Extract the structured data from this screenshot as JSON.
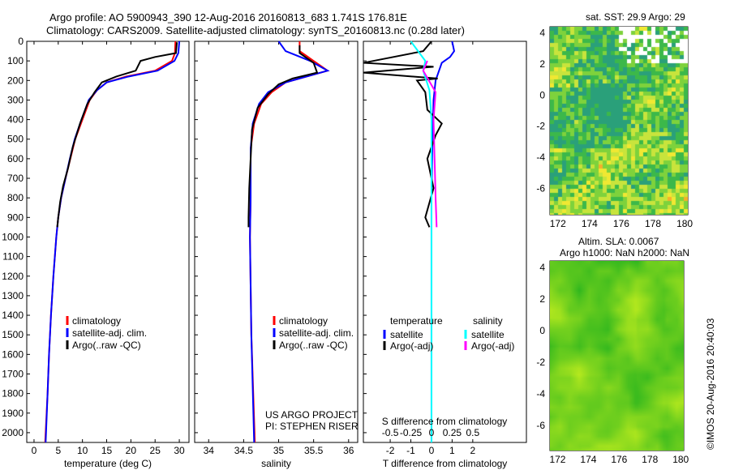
{
  "title_line1": "Argo profile: AO 5900943_390 12-Aug-2016 20160813_683 1.741S 176.81E",
  "title_line2": "Climatology: CARS2009. Satellite-adjusted climatology: synTS_20160813.nc (0.28d later)",
  "colors": {
    "climatology": "#ff0000",
    "satellite": "#0000ff",
    "argo": "#000000",
    "sal_sat": "#00ffff",
    "sal_argo": "#ff00ff"
  },
  "chart_data": [
    {
      "type": "line",
      "name": "temperature",
      "xlabel": "temperature (deg C)",
      "xlim": [
        -1.5,
        32
      ],
      "ylim": [
        0,
        2050
      ],
      "xticks": [
        0,
        5,
        10,
        15,
        20,
        25,
        30
      ],
      "yticks": [
        0,
        100,
        200,
        300,
        400,
        500,
        600,
        700,
        800,
        900,
        1000,
        1100,
        1200,
        1300,
        1400,
        1500,
        1600,
        1700,
        1800,
        1900,
        2000
      ],
      "legend": [
        "climatology",
        "satellite-adj. clim.",
        "Argo(..raw -QC)"
      ],
      "series": [
        {
          "name": "climatology",
          "color": "#ff0000",
          "points": [
            [
              29.2,
              0
            ],
            [
              29.1,
              60
            ],
            [
              28.5,
              100
            ],
            [
              25,
              150
            ],
            [
              19,
              180
            ],
            [
              15,
              210
            ],
            [
              13,
              250
            ],
            [
              11.5,
              300
            ],
            [
              10,
              400
            ],
            [
              8.5,
              500
            ],
            [
              7.5,
              600
            ],
            [
              6.5,
              700
            ],
            [
              5.6,
              800
            ],
            [
              5,
              900
            ],
            [
              4.6,
              1000
            ],
            [
              4,
              1200
            ],
            [
              3.5,
              1400
            ],
            [
              3.1,
              1600
            ],
            [
              2.8,
              1800
            ],
            [
              2.3,
              2050
            ]
          ]
        },
        {
          "name": "satellite-adj. clim.",
          "color": "#0000ff",
          "points": [
            [
              30,
              0
            ],
            [
              29.8,
              60
            ],
            [
              29,
              100
            ],
            [
              25.5,
              150
            ],
            [
              19.5,
              180
            ],
            [
              15,
              210
            ],
            [
              13,
              250
            ],
            [
              11.3,
              300
            ],
            [
              9.8,
              400
            ],
            [
              8.4,
              500
            ],
            [
              7.4,
              600
            ],
            [
              6.5,
              700
            ],
            [
              5.6,
              800
            ],
            [
              5,
              900
            ],
            [
              4.6,
              1000
            ],
            [
              4,
              1200
            ],
            [
              3.5,
              1400
            ],
            [
              3.1,
              1600
            ],
            [
              2.8,
              1800
            ],
            [
              2.4,
              2050
            ]
          ]
        },
        {
          "name": "Argo(..raw -QC)",
          "color": "#000000",
          "points": [
            [
              29.5,
              5
            ],
            [
              29.3,
              60
            ],
            [
              25,
              80
            ],
            [
              22,
              100
            ],
            [
              21,
              150
            ],
            [
              17,
              180
            ],
            [
              14,
              210
            ],
            [
              12.5,
              260
            ],
            [
              11,
              320
            ],
            [
              9.5,
              420
            ],
            [
              8,
              540
            ],
            [
              7,
              650
            ],
            [
              6,
              740
            ],
            [
              5.4,
              820
            ],
            [
              5,
              900
            ],
            [
              4.8,
              950
            ]
          ]
        }
      ]
    },
    {
      "type": "line",
      "name": "salinity",
      "xlabel": "salinity",
      "xlim": [
        33.8,
        36.13
      ],
      "ylim": [
        0,
        2050
      ],
      "xticks": [
        34,
        34.5,
        35,
        35.5,
        36
      ],
      "legend": [
        "climatology",
        "satellite-adj. clim.",
        "Argo(..raw -QC)"
      ],
      "annotation": [
        "US ARGO PROJECT",
        "PI: STEPHEN RISER"
      ],
      "series": [
        {
          "name": "climatology",
          "color": "#ff0000",
          "points": [
            [
              35.3,
              0
            ],
            [
              35.3,
              50
            ],
            [
              35.5,
              100
            ],
            [
              35.7,
              150
            ],
            [
              35.4,
              180
            ],
            [
              35.1,
              210
            ],
            [
              34.9,
              260
            ],
            [
              34.75,
              320
            ],
            [
              34.65,
              420
            ],
            [
              34.6,
              550
            ],
            [
              34.6,
              800
            ],
            [
              34.59,
              1000
            ],
            [
              34.61,
              1500
            ],
            [
              34.66,
              2050
            ]
          ]
        },
        {
          "name": "satellite-adj. clim.",
          "color": "#0000ff",
          "points": [
            [
              35,
              0
            ],
            [
              35.1,
              50
            ],
            [
              35.45,
              100
            ],
            [
              35.7,
              150
            ],
            [
              35.4,
              180
            ],
            [
              35.1,
              210
            ],
            [
              34.85,
              260
            ],
            [
              34.72,
              320
            ],
            [
              34.63,
              420
            ],
            [
              34.6,
              550
            ],
            [
              34.6,
              800
            ],
            [
              34.59,
              1000
            ],
            [
              34.61,
              1500
            ],
            [
              34.65,
              2050
            ]
          ]
        },
        {
          "name": "Argo(..raw -QC)",
          "color": "#000000",
          "points": [
            [
              35.3,
              20
            ],
            [
              35.3,
              60
            ],
            [
              35.5,
              110
            ],
            [
              35.55,
              160
            ],
            [
              35.2,
              190
            ],
            [
              35,
              220
            ],
            [
              34.85,
              270
            ],
            [
              34.7,
              340
            ],
            [
              34.62,
              450
            ],
            [
              34.6,
              600
            ],
            [
              34.58,
              750
            ],
            [
              34.57,
              900
            ],
            [
              34.57,
              950
            ]
          ]
        }
      ]
    },
    {
      "type": "line",
      "name": "differences",
      "xlabel": "T difference from climatology",
      "xlabel_top": "S difference from climatology",
      "xlim": [
        -3.3,
        4.6
      ],
      "ylim": [
        0,
        2050
      ],
      "xticks": [
        -2,
        -1,
        0,
        1,
        2
      ],
      "xticks_top": [
        "-0.5",
        "-0.25",
        "0",
        "0.25",
        "0.5"
      ],
      "legend_headers": [
        "temperature",
        "salinity"
      ],
      "legend": [
        "satellite",
        "Argo(-adj)",
        "satellite",
        "Argo(-adj)"
      ],
      "series": [
        {
          "name": "T satellite",
          "color": "#0000ff",
          "points": [
            [
              1,
              0
            ],
            [
              1.1,
              50
            ],
            [
              0.9,
              80
            ],
            [
              0.5,
              110
            ],
            [
              0.2,
              200
            ],
            [
              0.1,
              300
            ],
            [
              0.05,
              500
            ],
            [
              0,
              800
            ],
            [
              0,
              2050
            ]
          ]
        },
        {
          "name": "T Argo(-adj)",
          "color": "#000000",
          "points": [
            [
              0,
              0
            ],
            [
              -0.4,
              50
            ],
            [
              -3.3,
              110
            ],
            [
              0.1,
              130
            ],
            [
              -3.3,
              160
            ],
            [
              0.3,
              190
            ],
            [
              -0.7,
              200
            ],
            [
              -0.3,
              260
            ],
            [
              -0.2,
              350
            ],
            [
              0.5,
              420
            ],
            [
              0.2,
              480
            ],
            [
              -0.2,
              600
            ],
            [
              0.1,
              750
            ],
            [
              -0.3,
              900
            ],
            [
              -0.1,
              950
            ]
          ]
        },
        {
          "name": "S satellite",
          "color": "#00ffff",
          "points": [
            [
              -1,
              0
            ],
            [
              -0.3,
              100
            ],
            [
              -0.4,
              150
            ],
            [
              -0.1,
              250
            ],
            [
              0,
              400
            ],
            [
              0,
              2050
            ]
          ]
        },
        {
          "name": "S Argo(-adj)",
          "color": "#ff00ff",
          "points": [
            [
              -0.2,
              100
            ],
            [
              -0.4,
              150
            ],
            [
              0.2,
              260
            ],
            [
              0.1,
              400
            ],
            [
              0.15,
              600
            ],
            [
              0.2,
              800
            ],
            [
              0.25,
              950
            ]
          ]
        }
      ]
    },
    {
      "type": "heatmap",
      "name": "sst_map",
      "title": "sat. SST: 29.9 Argo: 29",
      "xlim": [
        171.5,
        180.2
      ],
      "ylim": [
        -7.7,
        4.4
      ],
      "xticks": [
        172,
        174,
        176,
        178,
        180
      ],
      "yticks": [
        4,
        2,
        0,
        -2,
        -4,
        -6
      ],
      "marker": [
        176.81,
        -1.741
      ]
    },
    {
      "type": "heatmap",
      "name": "sla_map",
      "title": "Altim. SLA: 0.0067",
      "subtitle": "Argo h1000: NaN h2000: NaN",
      "xlim": [
        171.5,
        180.2
      ],
      "ylim": [
        -7.6,
        4.4
      ],
      "xticks": [
        172,
        174,
        176,
        178,
        180
      ],
      "yticks": [
        4,
        2,
        0,
        -2,
        -4,
        -6
      ],
      "marker": [
        176.81,
        -1.741
      ]
    }
  ],
  "credit": "©IMOS 20-Aug-2016 20:40:03"
}
